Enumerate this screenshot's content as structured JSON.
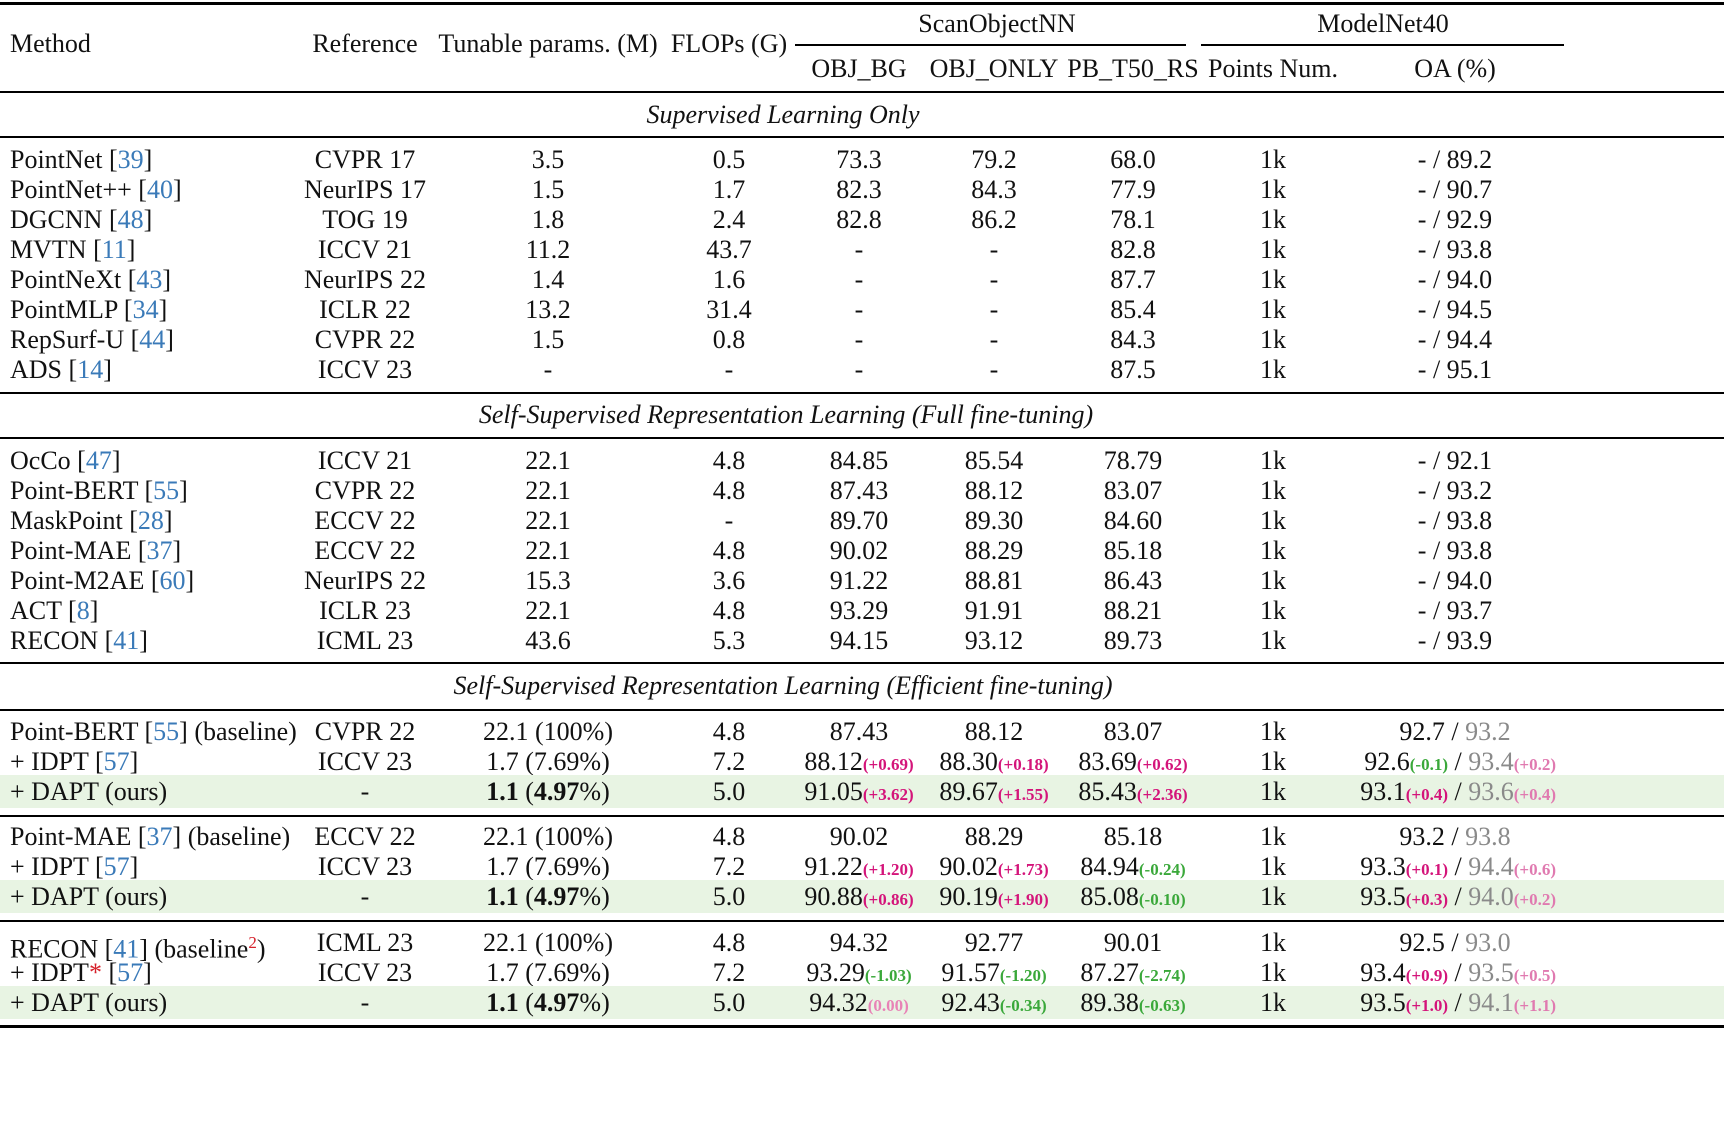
{
  "header": {
    "method": "Method",
    "reference": "Reference",
    "tunable": "Tunable params. (M)",
    "flops": "FLOPs (G)",
    "scanobjectnn": "ScanObjectNN",
    "modelnet40": "ModelNet40",
    "obj_bg": "OBJ_BG",
    "obj_only": "OBJ_ONLY",
    "pb": "PB_T50_RS",
    "points": "Points Num.",
    "oa": "OA (%)"
  },
  "sections": {
    "s1": "Supervised Learning Only",
    "s2": "Self-Supervised Representation Learning (Full fine-tuning)",
    "s3": "Self-Supervised Representation Learning (Efficient fine-tuning)"
  },
  "rows_supervised": [
    {
      "name": "PointNet",
      "cite": "39",
      "ref": "CVPR 17",
      "params": "3.5",
      "flops": "0.5",
      "bg": "73.3",
      "only": "79.2",
      "pb": "68.0",
      "pts": "1k",
      "oa": "- / 89.2"
    },
    {
      "name": "PointNet++",
      "cite": "40",
      "ref": "NeurIPS 17",
      "params": "1.5",
      "flops": "1.7",
      "bg": "82.3",
      "only": "84.3",
      "pb": "77.9",
      "pts": "1k",
      "oa": "- / 90.7"
    },
    {
      "name": "DGCNN",
      "cite": "48",
      "ref": "TOG 19",
      "params": "1.8",
      "flops": "2.4",
      "bg": "82.8",
      "only": "86.2",
      "pb": "78.1",
      "pts": "1k",
      "oa": "- / 92.9"
    },
    {
      "name": "MVTN",
      "cite": "11",
      "ref": "ICCV 21",
      "params": "11.2",
      "flops": "43.7",
      "bg": "-",
      "only": "-",
      "pb": "82.8",
      "pts": "1k",
      "oa": "- / 93.8"
    },
    {
      "name": "PointNeXt",
      "cite": "43",
      "ref": "NeurIPS 22",
      "params": "1.4",
      "flops": "1.6",
      "bg": "-",
      "only": "-",
      "pb": "87.7",
      "pts": "1k",
      "oa": "- / 94.0"
    },
    {
      "name": "PointMLP",
      "cite": "34",
      "ref": "ICLR 22",
      "params": "13.2",
      "flops": "31.4",
      "bg": "-",
      "only": "-",
      "pb": "85.4",
      "pts": "1k",
      "oa": "- / 94.5"
    },
    {
      "name": "RepSurf-U",
      "cite": "44",
      "ref": "CVPR 22",
      "params": "1.5",
      "flops": "0.8",
      "bg": "-",
      "only": "-",
      "pb": "84.3",
      "pts": "1k",
      "oa": "- / 94.4"
    },
    {
      "name": "ADS",
      "cite": "14",
      "ref": "ICCV 23",
      "params": "-",
      "flops": "-",
      "bg": "-",
      "only": "-",
      "pb": "87.5",
      "pts": "1k",
      "oa": "- / 95.1"
    }
  ],
  "rows_full": [
    {
      "name": "OcCo",
      "cite": "47",
      "ref": "ICCV 21",
      "params": "22.1",
      "flops": "4.8",
      "bg": "84.85",
      "only": "85.54",
      "pb": "78.79",
      "pts": "1k",
      "oa": "- / 92.1"
    },
    {
      "name": "Point-BERT",
      "cite": "55",
      "ref": "CVPR 22",
      "params": "22.1",
      "flops": "4.8",
      "bg": "87.43",
      "only": "88.12",
      "pb": "83.07",
      "pts": "1k",
      "oa": "- / 93.2"
    },
    {
      "name": "MaskPoint",
      "cite": "28",
      "ref": "ECCV 22",
      "params": "22.1",
      "flops": "-",
      "bg": "89.70",
      "only": "89.30",
      "pb": "84.60",
      "pts": "1k",
      "oa": "- / 93.8"
    },
    {
      "name": "Point-MAE",
      "cite": "37",
      "ref": "ECCV 22",
      "params": "22.1",
      "flops": "4.8",
      "bg": "90.02",
      "only": "88.29",
      "pb": "85.18",
      "pts": "1k",
      "oa": "- / 93.8"
    },
    {
      "name": "Point-M2AE",
      "cite": "60",
      "ref": "NeurIPS 22",
      "params": "15.3",
      "flops": "3.6",
      "bg": "91.22",
      "only": "88.81",
      "pb": "86.43",
      "pts": "1k",
      "oa": "- / 94.0"
    },
    {
      "name": "ACT",
      "cite": "8",
      "ref": "ICLR 23",
      "params": "22.1",
      "flops": "4.8",
      "bg": "93.29",
      "only": "91.91",
      "pb": "88.21",
      "pts": "1k",
      "oa": "- / 93.7"
    },
    {
      "name": "RECON",
      "cite": "41",
      "ref": "ICML 23",
      "params": "43.6",
      "flops": "5.3",
      "bg": "94.15",
      "only": "93.12",
      "pb": "89.73",
      "pts": "1k",
      "oa": "- / 93.9"
    }
  ],
  "group1": {
    "base": {
      "name": "Point-BERT",
      "cite": "55",
      "suffix": " (baseline)",
      "ref": "CVPR 22",
      "params": "22.1 (100%)",
      "flops": "4.8",
      "bg": "87.43",
      "only": "88.12",
      "pb": "83.07",
      "pts": "1k",
      "oa1": "92.7",
      "oa2": "93.2"
    },
    "idpt": {
      "name": "+ IDPT",
      "cite": "57",
      "ref": "ICCV 23",
      "params": "1.7 (7.69%)",
      "flops": "7.2",
      "bg": "88.12",
      "bgd": "(+0.69)",
      "only": "88.30",
      "onlyd": "(+0.18)",
      "pb": "83.69",
      "pbd": "(+0.62)",
      "pts": "1k",
      "oa1": "92.6",
      "oa1d": "(-0.1)",
      "oa2": "93.4",
      "oa2d": "(+0.2)"
    },
    "dapt": {
      "name": "+ DAPT (ours)",
      "ref": "-",
      "p1": "1.1",
      "p2": "4.97",
      "flops": "5.0",
      "bg": "91.05",
      "bgd": "(+3.62)",
      "only": "89.67",
      "onlyd": "(+1.55)",
      "pb": "85.43",
      "pbd": "(+2.36)",
      "pts": "1k",
      "oa1": "93.1",
      "oa1d": "(+0.4)",
      "oa2": "93.6",
      "oa2d": "(+0.4)"
    }
  },
  "group2": {
    "base": {
      "name": "Point-MAE",
      "cite": "37",
      "suffix": " (baseline)",
      "ref": "ECCV 22",
      "params": "22.1 (100%)",
      "flops": "4.8",
      "bg": "90.02",
      "only": "88.29",
      "pb": "85.18",
      "pts": "1k",
      "oa1": "93.2",
      "oa2": "93.8"
    },
    "idpt": {
      "name": "+ IDPT",
      "cite": "57",
      "ref": "ICCV 23",
      "params": "1.7 (7.69%)",
      "flops": "7.2",
      "bg": "91.22",
      "bgd": "(+1.20)",
      "only": "90.02",
      "onlyd": "(+1.73)",
      "pb": "84.94",
      "pbd": "(-0.24)",
      "pts": "1k",
      "oa1": "93.3",
      "oa1d": "(+0.1)",
      "oa2": "94.4",
      "oa2d": "(+0.6)"
    },
    "dapt": {
      "name": "+ DAPT (ours)",
      "ref": "-",
      "p1": "1.1",
      "p2": "4.97",
      "flops": "5.0",
      "bg": "90.88",
      "bgd": "(+0.86)",
      "only": "90.19",
      "onlyd": "(+1.90)",
      "pb": "85.08",
      "pbd": "(-0.10)",
      "pts": "1k",
      "oa1": "93.5",
      "oa1d": "(+0.3)",
      "oa2": "94.0",
      "oa2d": "(+0.2)"
    }
  },
  "group3": {
    "base": {
      "name": "RECON",
      "cite": "41",
      "suffix": " (baseline",
      "sup": "2",
      "ref": "ICML 23",
      "params": "22.1 (100%)",
      "flops": "4.8",
      "bg": "94.32",
      "only": "92.77",
      "pb": "90.01",
      "pts": "1k",
      "oa1": "92.5",
      "oa2": "93.0"
    },
    "idpt": {
      "name": "+ IDPT",
      "star": "*",
      "cite": "57",
      "ref": "ICCV 23",
      "params": "1.7 (7.69%)",
      "flops": "7.2",
      "bg": "93.29",
      "bgd": "(-1.03)",
      "only": "91.57",
      "onlyd": "(-1.20)",
      "pb": "87.27",
      "pbd": "(-2.74)",
      "pts": "1k",
      "oa1": "93.4",
      "oa1d": "(+0.9)",
      "oa2": "93.5",
      "oa2d": "(+0.5)"
    },
    "dapt": {
      "name": "+ DAPT (ours)",
      "ref": "-",
      "p1": "1.1",
      "p2": "4.97",
      "flops": "5.0",
      "bg": "94.32",
      "bgd": "(0.00)",
      "only": "92.43",
      "onlyd": "(-0.34)",
      "pb": "89.38",
      "pbd": "(-0.63)",
      "pts": "1k",
      "oa1": "93.5",
      "oa1d": "(+1.0)",
      "oa2": "94.1",
      "oa2d": "(+1.1)"
    }
  }
}
